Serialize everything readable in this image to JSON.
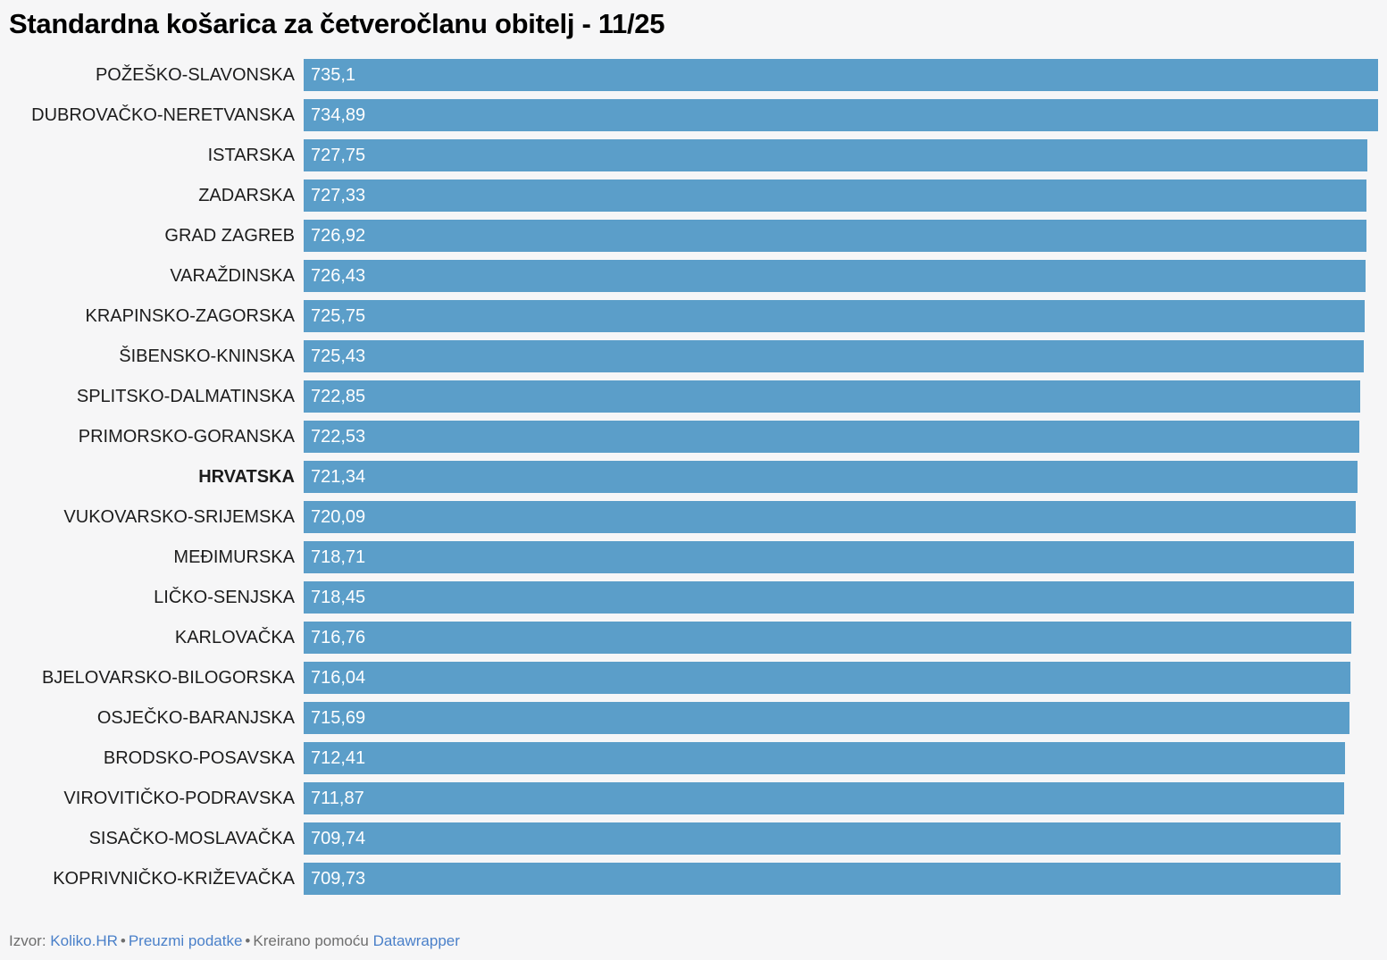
{
  "title": "Standardna košarica za četveročlanu obitelj - 11/25",
  "colors": {
    "bar": "#5b9ec9",
    "background": "#f6f6f7",
    "label": "#1c1c1c",
    "value_text": "#ffffff",
    "link": "#4a80c9",
    "footer_text": "#6e6e6e",
    "title": "#000000"
  },
  "footer": {
    "source_prefix": "Izvor:",
    "source_link": "Koliko.HR",
    "separator": "•",
    "download_link": "Preuzmi podatke",
    "created_text": "Kreirano pomoću",
    "tool_link": "Datawrapper"
  },
  "chart_data": {
    "type": "bar",
    "orientation": "horizontal",
    "title": "Standardna košarica za četveročlanu obitelj - 11/25",
    "xlabel": "",
    "ylabel": "",
    "xlim": [
      0,
      735.1
    ],
    "grid": false,
    "legend": false,
    "value_label_position": "inside-start",
    "emphasized_category": "HRVATSKA",
    "categories": [
      "POŽEŠKO-SLAVONSKA",
      "DUBROVAČKO-NERETVANSKA",
      "ISTARSKA",
      "ZADARSKA",
      "GRAD ZAGREB",
      "VARAŽDINSKA",
      "KRAPINSKO-ZAGORSKA",
      "ŠIBENSKO-KNINSKA",
      "SPLITSKO-DALMATINSKA",
      "PRIMORSKO-GORANSKA",
      "HRVATSKA",
      "VUKOVARSKO-SRIJEMSKA",
      "MEĐIMURSKA",
      "LIČKO-SENJSKA",
      "KARLOVAČKA",
      "BJELOVARSKO-BILOGORSKA",
      "OSJEČKO-BARANJSKA",
      "BRODSKO-POSAVSKA",
      "VIROVITIČKO-PODRAVSKA",
      "SISAČKO-MOSLAVAČKA",
      "KOPRIVNIČKO-KRIŽEVAČKA"
    ],
    "values": [
      735.1,
      734.89,
      727.75,
      727.33,
      726.92,
      726.43,
      725.75,
      725.43,
      722.85,
      722.53,
      721.34,
      720.09,
      718.71,
      718.45,
      716.76,
      716.04,
      715.69,
      712.41,
      711.87,
      709.74,
      709.73
    ],
    "value_labels": [
      "735,1",
      "734,89",
      "727,75",
      "727,33",
      "726,92",
      "726,43",
      "725,75",
      "725,43",
      "722,85",
      "722,53",
      "721,34",
      "720,09",
      "718,71",
      "718,45",
      "716,76",
      "716,04",
      "715,69",
      "712,41",
      "711,87",
      "709,74",
      "709,73"
    ]
  }
}
